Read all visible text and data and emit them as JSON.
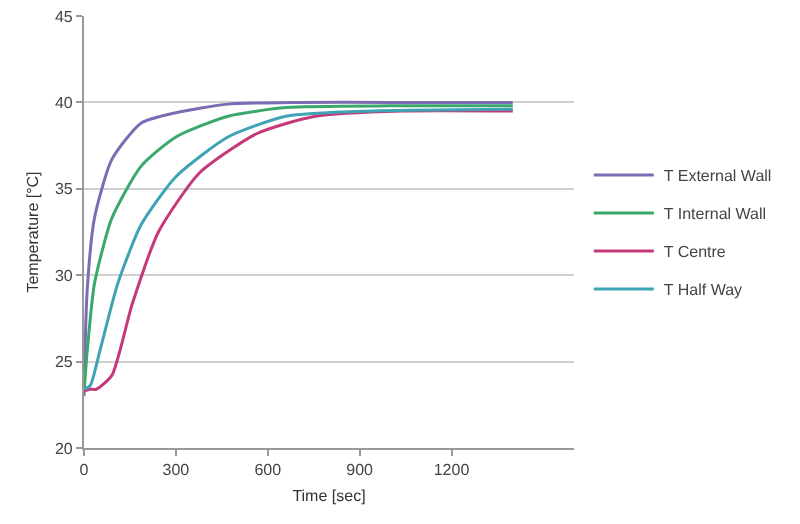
{
  "chart_data": {
    "type": "line",
    "xlabel": "Time [sec]",
    "ylabel": "Temperature [°C]",
    "xlim": [
      0,
      1600
    ],
    "xticks": [
      0,
      300,
      600,
      900,
      1200
    ],
    "ylim": [
      20,
      45
    ],
    "yticks": [
      20,
      25,
      30,
      35,
      40,
      45
    ],
    "grid": "y",
    "legend": "right",
    "marker": "none",
    "line_style": "solid",
    "series": [
      {
        "name": "T External Wall",
        "color": "#7e6bb5",
        "x": [
          0,
          10,
          34,
          91,
          186,
          300,
          470,
          700,
          1000,
          1400
        ],
        "values": [
          23,
          29,
          33.3,
          36.7,
          38.8,
          39.4,
          39.9,
          40,
          40,
          40
        ]
      },
      {
        "name": "T Internal Wall",
        "color": "#3aa86b",
        "x": [
          0,
          10,
          34,
          91,
          186,
          300,
          470,
          660,
          1000,
          1400
        ],
        "values": [
          23.2,
          25.5,
          29.5,
          33.3,
          36.3,
          38,
          39.2,
          39.7,
          39.8,
          39.8
        ]
      },
      {
        "name": "T Centre",
        "color": "#c5397a",
        "x": [
          0,
          20,
          40,
          91,
          157,
          243,
          376,
          565,
          755,
          1040,
          1400
        ],
        "values": [
          23.3,
          23.4,
          23.4,
          24.2,
          28.3,
          32.5,
          35.9,
          38.2,
          39.2,
          39.5,
          39.5
        ]
      },
      {
        "name": "T Half Way",
        "color": "#3fa3b5",
        "x": [
          0,
          20,
          53,
          110,
          186,
          300,
          470,
          660,
          945,
          1400
        ],
        "values": [
          23.4,
          23.6,
          25.7,
          29.5,
          32.9,
          35.7,
          38,
          39.2,
          39.5,
          39.6
        ]
      }
    ]
  }
}
